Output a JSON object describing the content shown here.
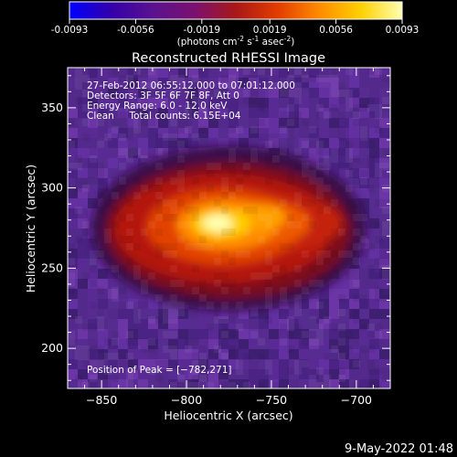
{
  "chart_data": {
    "type": "heatmap",
    "title": "Reconstructed RHESSI Image",
    "colorbar": {
      "ticks": [
        "-0.0093",
        "-0.0056",
        "-0.0019",
        "0.0019",
        "0.0056",
        "0.0093"
      ],
      "range": [
        -0.0093,
        0.0093
      ],
      "unit_label": {
        "prefix": "(photons cm",
        "exp1": "-2",
        "mid1": " s",
        "exp2": "-1",
        "mid2": " asec",
        "exp3": "-2",
        "suffix": ")"
      },
      "colormap": [
        "#0000ff",
        "#3300aa",
        "#5a1290",
        "#7a1070",
        "#a81818",
        "#e23c00",
        "#ff8a00",
        "#ffd000",
        "#ffffb0"
      ]
    },
    "xlabel": "Heliocentric X (arcsec)",
    "ylabel": "Heliocentric Y (arcsec)",
    "xlim": [
      -870,
      -680
    ],
    "ylim": [
      175,
      375
    ],
    "xticks": [
      -850,
      -800,
      -750,
      -700
    ],
    "yticks": [
      200,
      250,
      300,
      350
    ],
    "xtick_labels": [
      "−850",
      "−800",
      "−750",
      "−700"
    ],
    "ytick_labels": [
      "200",
      "250",
      "300",
      "350"
    ],
    "info_lines": [
      "27-Feb-2012 06:55:12.000 to 07:01:12.000",
      "Detectors: 3F 5F 6F 7F 8F, Att 0",
      "Energy Range: 6.0 - 12.0 keV",
      "Clean     Total counts: 6.15E+04"
    ],
    "peak_label": "Position of Peak = [−782,271]",
    "peak": {
      "x": -782,
      "y": 271
    }
  },
  "footer": {
    "date": "9-May-2022 01:48"
  }
}
